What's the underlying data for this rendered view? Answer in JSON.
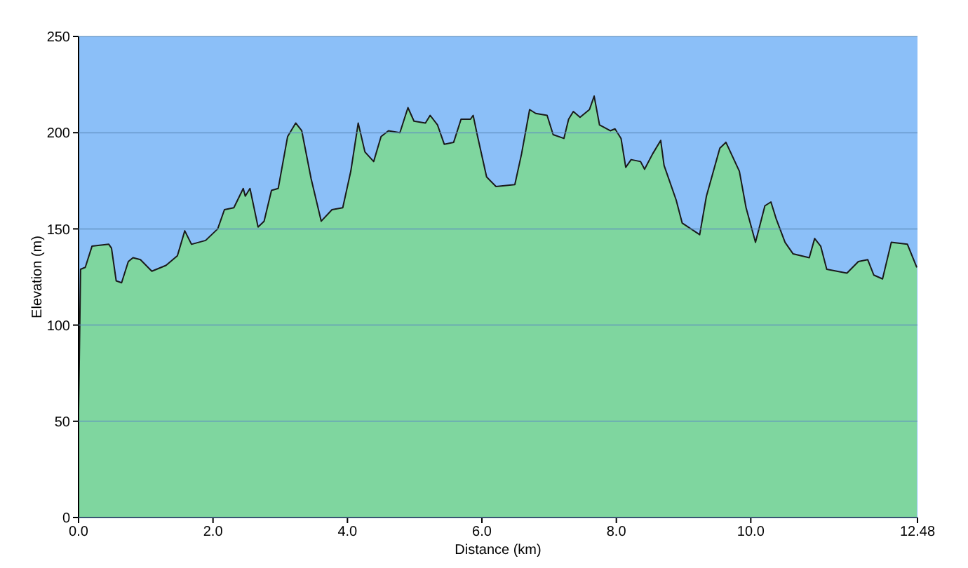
{
  "chart_data": {
    "type": "area",
    "xlabel": "Distance  (km)",
    "ylabel": "Elevation (m)",
    "x": [
      0,
      0.03,
      0.1,
      0.2,
      0.45,
      0.49,
      0.56,
      0.64,
      0.74,
      0.81,
      0.92,
      1.09,
      1.3,
      1.47,
      1.58,
      1.68,
      1.89,
      2.07,
      2.17,
      2.31,
      2.45,
      2.48,
      2.55,
      2.67,
      2.76,
      2.87,
      2.97,
      3.11,
      3.23,
      3.32,
      3.46,
      3.61,
      3.77,
      3.93,
      4.05,
      4.16,
      4.26,
      4.39,
      4.5,
      4.61,
      4.78,
      4.9,
      4.99,
      5.16,
      5.23,
      5.34,
      5.44,
      5.58,
      5.69,
      5.83,
      5.87,
      5.93,
      6.07,
      6.21,
      6.49,
      6.59,
      6.71,
      6.8,
      6.97,
      7.06,
      7.22,
      7.29,
      7.36,
      7.46,
      7.6,
      7.67,
      7.75,
      7.91,
      7.98,
      8.07,
      8.14,
      8.22,
      8.36,
      8.42,
      8.54,
      8.66,
      8.71,
      8.89,
      8.98,
      9.24,
      9.34,
      9.54,
      9.63,
      9.83,
      9.93,
      10.07,
      10.21,
      10.3,
      10.38,
      10.51,
      10.63,
      10.87,
      10.95,
      11.04,
      11.13,
      11.43,
      11.6,
      11.74,
      11.83,
      11.96,
      12.09,
      12.33,
      12.47
    ],
    "series": [
      {
        "color": "#7fd69f",
        "values": [
          55,
          129,
          130,
          141,
          142,
          140,
          123,
          122,
          133,
          135,
          134,
          128,
          131,
          136,
          149,
          142,
          144,
          150,
          160,
          161,
          171,
          167,
          171,
          151,
          154,
          170,
          171,
          198,
          205,
          201,
          176,
          154,
          160,
          161,
          180,
          205,
          190,
          185,
          198,
          201,
          200,
          213,
          206,
          205,
          209,
          204,
          194,
          195,
          207,
          207,
          209,
          199,
          177,
          172,
          173,
          189,
          212,
          210,
          209,
          199,
          197,
          207,
          211,
          208,
          212,
          219,
          204,
          201,
          202,
          197,
          182,
          186,
          185,
          181,
          189,
          196,
          183,
          165,
          153,
          147,
          167,
          192,
          195,
          180,
          161,
          143,
          162,
          164,
          155,
          143,
          137,
          135,
          145,
          141,
          129,
          127,
          133,
          134,
          126,
          124,
          143,
          142,
          130
        ]
      }
    ],
    "xlim": [
      0,
      12.48
    ],
    "xticks": [
      {
        "value": 0,
        "label": "0.0"
      },
      {
        "value": 2,
        "label": "2.0"
      },
      {
        "value": 4,
        "label": "4.0"
      },
      {
        "value": 6,
        "label": "6.0"
      },
      {
        "value": 8,
        "label": "8.0"
      },
      {
        "value": 10,
        "label": "10.0"
      },
      12.48
    ],
    "ylim": [
      0,
      250
    ],
    "yticks": [
      0,
      50,
      100,
      150,
      200,
      250
    ],
    "bands": [
      {
        "axis": "x",
        "from": 0,
        "to": 12.48,
        "color": "#8bbff8"
      }
    ],
    "grid": "y",
    "marker": "none",
    "line_style": "solid"
  }
}
